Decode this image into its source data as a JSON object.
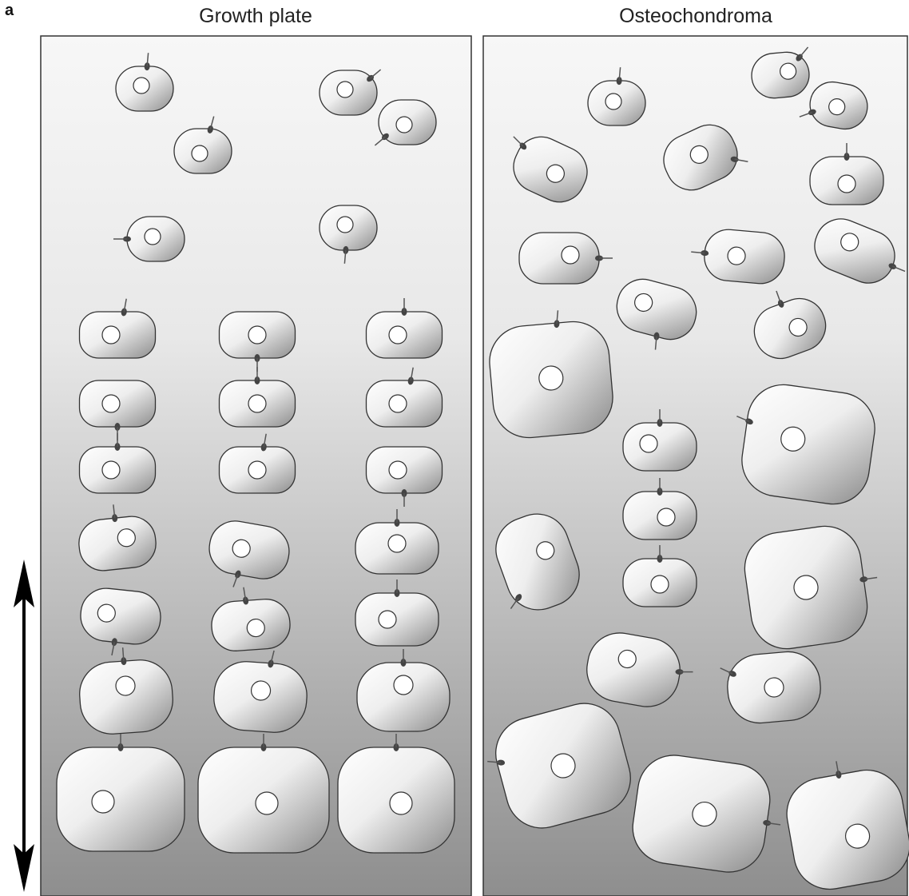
{
  "figure": {
    "panel_letter": "a",
    "left_panel_title": "Growth plate",
    "right_panel_title": "Osteochondroma"
  },
  "colors": {
    "background_top": "#f6f6f6",
    "background_bottom": "#8f8f8f",
    "cell_light": "#ffffff",
    "cell_dark": "#8a8a8a",
    "cell_stroke": "#333333",
    "cilium": "#444444",
    "arrow": "#000000"
  }
}
